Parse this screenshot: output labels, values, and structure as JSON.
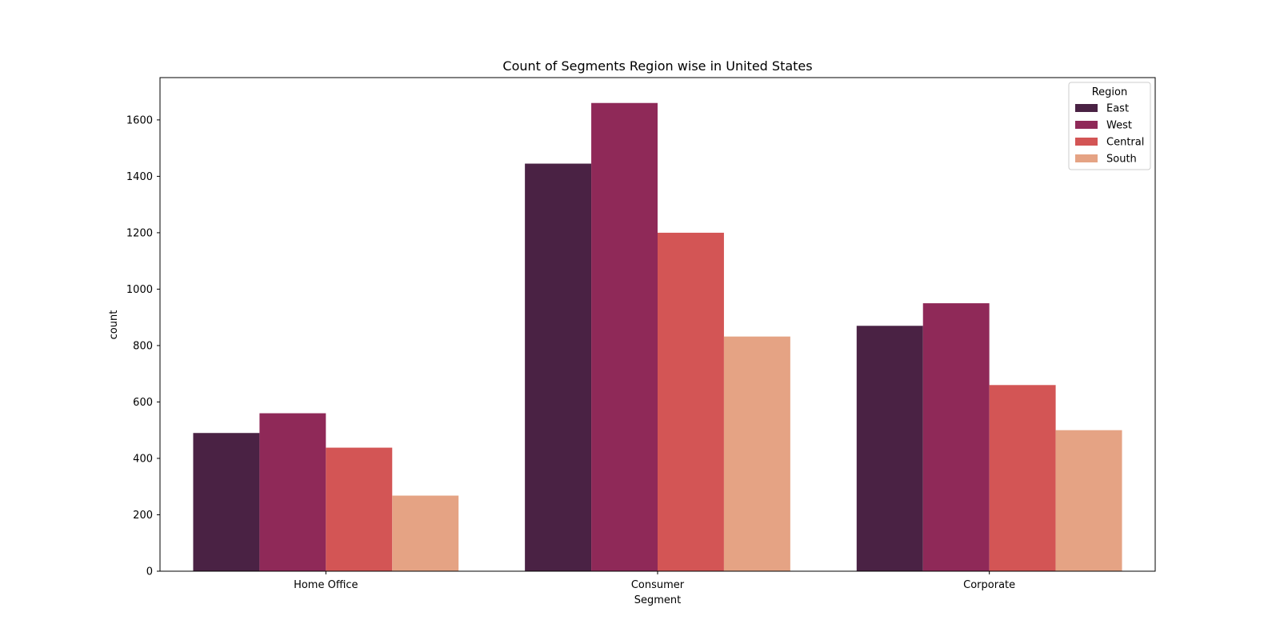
{
  "chart_data": {
    "type": "bar",
    "title": "Count of Segments Region wise in United States",
    "xlabel": "Segment",
    "ylabel": "count",
    "categories": [
      "Home Office",
      "Consumer",
      "Corporate"
    ],
    "ylim": [
      0,
      1750
    ],
    "yticks": [
      0,
      200,
      400,
      600,
      800,
      1000,
      1200,
      1400,
      1600
    ],
    "grid": false,
    "legend": {
      "title": "Region",
      "placement": "top-right"
    },
    "series": [
      {
        "name": "East",
        "color": "#4a2244",
        "values": [
          490,
          1445,
          870
        ]
      },
      {
        "name": "West",
        "color": "#8f2958",
        "values": [
          560,
          1660,
          950
        ]
      },
      {
        "name": "Central",
        "color": "#d35555",
        "values": [
          438,
          1200,
          660
        ]
      },
      {
        "name": "South",
        "color": "#e5a384",
        "values": [
          268,
          832,
          500
        ]
      }
    ]
  }
}
